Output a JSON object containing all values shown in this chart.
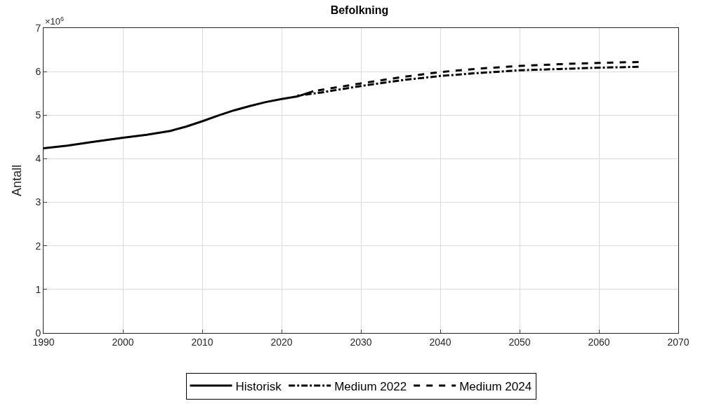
{
  "chart_data": {
    "type": "line",
    "title": "Befolkning",
    "ylabel": "Antall",
    "annotations": [
      "×10$^{6}$"
    ],
    "series": [
      {
        "name": "Historisk",
        "color": "#000000",
        "line_style": "solid",
        "x": [
          1990,
          1993,
          1996,
          2000,
          2003,
          2006,
          2008,
          2010,
          2012,
          2014,
          2016,
          2018,
          2020,
          2022,
          2024
        ],
        "values": [
          4.24,
          4.3,
          4.38,
          4.48,
          4.55,
          4.64,
          4.74,
          4.86,
          4.99,
          5.11,
          5.21,
          5.3,
          5.37,
          5.43,
          5.55
        ]
      },
      {
        "name": "Medium 2022",
        "color": "#000000",
        "line_style": "dashdot",
        "x": [
          2022,
          2025,
          2030,
          2035,
          2040,
          2045,
          2050,
          2055,
          2060,
          2065
        ],
        "values": [
          5.45,
          5.52,
          5.67,
          5.8,
          5.9,
          5.97,
          6.03,
          6.06,
          6.09,
          6.11
        ]
      },
      {
        "name": "Medium 2024",
        "color": "#000000",
        "line_style": "dash",
        "x": [
          2024,
          2025,
          2030,
          2035,
          2040,
          2045,
          2050,
          2055,
          2060,
          2065
        ],
        "values": [
          5.55,
          5.58,
          5.73,
          5.87,
          5.99,
          6.07,
          6.13,
          6.17,
          6.2,
          6.22
        ]
      }
    ],
    "xlim": [
      1990,
      2070
    ],
    "xticks": [
      1990,
      2000,
      2010,
      2020,
      2030,
      2040,
      2050,
      2060,
      2070
    ],
    "ylim": [
      0,
      7
    ],
    "yticks": [
      0,
      1,
      2,
      3,
      4,
      5,
      6,
      7
    ],
    "grid": true,
    "legend": "bottom"
  }
}
